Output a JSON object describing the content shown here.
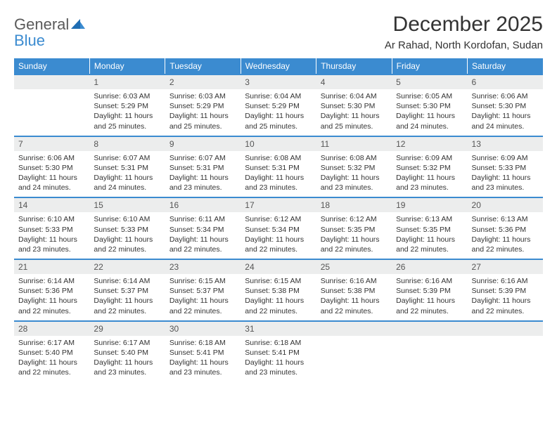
{
  "logo": {
    "word1": "General",
    "word2": "Blue"
  },
  "title": "December 2025",
  "location": "Ar Rahad, North Kordofan, Sudan",
  "header_bg": "#3b8bd0",
  "header_text": "#ffffff",
  "daynum_bg": "#eceded",
  "row_border": "#3b8bd0",
  "weekdays": [
    "Sunday",
    "Monday",
    "Tuesday",
    "Wednesday",
    "Thursday",
    "Friday",
    "Saturday"
  ],
  "weeks": [
    {
      "nums": [
        "",
        "1",
        "2",
        "3",
        "4",
        "5",
        "6"
      ],
      "cells": [
        null,
        {
          "sr": "Sunrise: 6:03 AM",
          "ss": "Sunset: 5:29 PM",
          "dl": "Daylight: 11 hours and 25 minutes."
        },
        {
          "sr": "Sunrise: 6:03 AM",
          "ss": "Sunset: 5:29 PM",
          "dl": "Daylight: 11 hours and 25 minutes."
        },
        {
          "sr": "Sunrise: 6:04 AM",
          "ss": "Sunset: 5:29 PM",
          "dl": "Daylight: 11 hours and 25 minutes."
        },
        {
          "sr": "Sunrise: 6:04 AM",
          "ss": "Sunset: 5:30 PM",
          "dl": "Daylight: 11 hours and 25 minutes."
        },
        {
          "sr": "Sunrise: 6:05 AM",
          "ss": "Sunset: 5:30 PM",
          "dl": "Daylight: 11 hours and 24 minutes."
        },
        {
          "sr": "Sunrise: 6:06 AM",
          "ss": "Sunset: 5:30 PM",
          "dl": "Daylight: 11 hours and 24 minutes."
        }
      ]
    },
    {
      "nums": [
        "7",
        "8",
        "9",
        "10",
        "11",
        "12",
        "13"
      ],
      "cells": [
        {
          "sr": "Sunrise: 6:06 AM",
          "ss": "Sunset: 5:30 PM",
          "dl": "Daylight: 11 hours and 24 minutes."
        },
        {
          "sr": "Sunrise: 6:07 AM",
          "ss": "Sunset: 5:31 PM",
          "dl": "Daylight: 11 hours and 24 minutes."
        },
        {
          "sr": "Sunrise: 6:07 AM",
          "ss": "Sunset: 5:31 PM",
          "dl": "Daylight: 11 hours and 23 minutes."
        },
        {
          "sr": "Sunrise: 6:08 AM",
          "ss": "Sunset: 5:31 PM",
          "dl": "Daylight: 11 hours and 23 minutes."
        },
        {
          "sr": "Sunrise: 6:08 AM",
          "ss": "Sunset: 5:32 PM",
          "dl": "Daylight: 11 hours and 23 minutes."
        },
        {
          "sr": "Sunrise: 6:09 AM",
          "ss": "Sunset: 5:32 PM",
          "dl": "Daylight: 11 hours and 23 minutes."
        },
        {
          "sr": "Sunrise: 6:09 AM",
          "ss": "Sunset: 5:33 PM",
          "dl": "Daylight: 11 hours and 23 minutes."
        }
      ]
    },
    {
      "nums": [
        "14",
        "15",
        "16",
        "17",
        "18",
        "19",
        "20"
      ],
      "cells": [
        {
          "sr": "Sunrise: 6:10 AM",
          "ss": "Sunset: 5:33 PM",
          "dl": "Daylight: 11 hours and 23 minutes."
        },
        {
          "sr": "Sunrise: 6:10 AM",
          "ss": "Sunset: 5:33 PM",
          "dl": "Daylight: 11 hours and 22 minutes."
        },
        {
          "sr": "Sunrise: 6:11 AM",
          "ss": "Sunset: 5:34 PM",
          "dl": "Daylight: 11 hours and 22 minutes."
        },
        {
          "sr": "Sunrise: 6:12 AM",
          "ss": "Sunset: 5:34 PM",
          "dl": "Daylight: 11 hours and 22 minutes."
        },
        {
          "sr": "Sunrise: 6:12 AM",
          "ss": "Sunset: 5:35 PM",
          "dl": "Daylight: 11 hours and 22 minutes."
        },
        {
          "sr": "Sunrise: 6:13 AM",
          "ss": "Sunset: 5:35 PM",
          "dl": "Daylight: 11 hours and 22 minutes."
        },
        {
          "sr": "Sunrise: 6:13 AM",
          "ss": "Sunset: 5:36 PM",
          "dl": "Daylight: 11 hours and 22 minutes."
        }
      ]
    },
    {
      "nums": [
        "21",
        "22",
        "23",
        "24",
        "25",
        "26",
        "27"
      ],
      "cells": [
        {
          "sr": "Sunrise: 6:14 AM",
          "ss": "Sunset: 5:36 PM",
          "dl": "Daylight: 11 hours and 22 minutes."
        },
        {
          "sr": "Sunrise: 6:14 AM",
          "ss": "Sunset: 5:37 PM",
          "dl": "Daylight: 11 hours and 22 minutes."
        },
        {
          "sr": "Sunrise: 6:15 AM",
          "ss": "Sunset: 5:37 PM",
          "dl": "Daylight: 11 hours and 22 minutes."
        },
        {
          "sr": "Sunrise: 6:15 AM",
          "ss": "Sunset: 5:38 PM",
          "dl": "Daylight: 11 hours and 22 minutes."
        },
        {
          "sr": "Sunrise: 6:16 AM",
          "ss": "Sunset: 5:38 PM",
          "dl": "Daylight: 11 hours and 22 minutes."
        },
        {
          "sr": "Sunrise: 6:16 AM",
          "ss": "Sunset: 5:39 PM",
          "dl": "Daylight: 11 hours and 22 minutes."
        },
        {
          "sr": "Sunrise: 6:16 AM",
          "ss": "Sunset: 5:39 PM",
          "dl": "Daylight: 11 hours and 22 minutes."
        }
      ]
    },
    {
      "nums": [
        "28",
        "29",
        "30",
        "31",
        "",
        "",
        ""
      ],
      "cells": [
        {
          "sr": "Sunrise: 6:17 AM",
          "ss": "Sunset: 5:40 PM",
          "dl": "Daylight: 11 hours and 22 minutes."
        },
        {
          "sr": "Sunrise: 6:17 AM",
          "ss": "Sunset: 5:40 PM",
          "dl": "Daylight: 11 hours and 23 minutes."
        },
        {
          "sr": "Sunrise: 6:18 AM",
          "ss": "Sunset: 5:41 PM",
          "dl": "Daylight: 11 hours and 23 minutes."
        },
        {
          "sr": "Sunrise: 6:18 AM",
          "ss": "Sunset: 5:41 PM",
          "dl": "Daylight: 11 hours and 23 minutes."
        },
        null,
        null,
        null
      ]
    }
  ]
}
